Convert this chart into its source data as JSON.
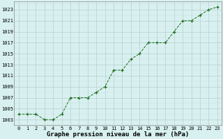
{
  "x": [
    0,
    1,
    2,
    3,
    4,
    5,
    6,
    7,
    8,
    9,
    10,
    11,
    12,
    13,
    14,
    15,
    16,
    17,
    18,
    19,
    20,
    21,
    22,
    23
  ],
  "y": [
    1004,
    1004,
    1004,
    1003,
    1003,
    1004,
    1007,
    1007,
    1007,
    1008,
    1009,
    1012,
    1012,
    1014,
    1015,
    1017,
    1017,
    1017,
    1019,
    1021,
    1021,
    1022,
    1023,
    1023.5
  ],
  "line_color": "#1a6b1a",
  "marker_color": "#1a6b1a",
  "bg_color": "#d8f0f0",
  "grid_major_color": "#b8cece",
  "grid_minor_color": "#cce0e0",
  "xlabel": "Graphe pression niveau de la mer (hPa)",
  "xlabel_fontsize": 6.5,
  "tick_fontsize": 5.0,
  "ytick_start": 1003,
  "ytick_end": 1023,
  "ytick_step": 2,
  "xlim": [
    -0.5,
    23.5
  ],
  "ylim": [
    1002.0,
    1024.5
  ]
}
